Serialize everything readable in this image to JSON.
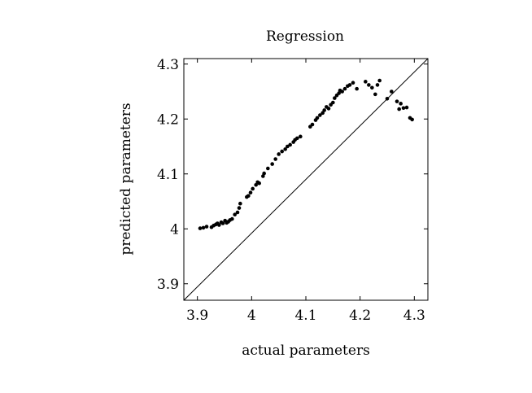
{
  "chart_data": {
    "type": "scatter",
    "title": "Regression",
    "xlabel": "actual parameters",
    "ylabel": "predicted parameters",
    "xlim": [
      3.875,
      4.325
    ],
    "ylim": [
      3.87,
      4.31
    ],
    "xticks": [
      "3.9",
      "4",
      "4.1",
      "4.2",
      "4.3"
    ],
    "xtick_values": [
      3.9,
      4.0,
      4.1,
      4.2,
      4.3
    ],
    "yticks": [
      "3.9",
      "4",
      "4.1",
      "4.2",
      "4.3"
    ],
    "ytick_values": [
      3.9,
      4.0,
      4.1,
      4.2,
      4.3
    ],
    "grid": false,
    "reference_line": {
      "from": [
        3.875,
        3.87
      ],
      "to": [
        4.325,
        4.31
      ]
    },
    "marker_color": "#000000",
    "points": [
      [
        3.905,
        4.001
      ],
      [
        3.911,
        4.002
      ],
      [
        3.917,
        4.004
      ],
      [
        3.926,
        4.003
      ],
      [
        3.93,
        4.006
      ],
      [
        3.934,
        4.008
      ],
      [
        3.937,
        4.01
      ],
      [
        3.94,
        4.007
      ],
      [
        3.944,
        4.012
      ],
      [
        3.947,
        4.01
      ],
      [
        3.951,
        4.015
      ],
      [
        3.954,
        4.011
      ],
      [
        3.957,
        4.013
      ],
      [
        3.96,
        4.016
      ],
      [
        3.964,
        4.018
      ],
      [
        3.969,
        4.026
      ],
      [
        3.974,
        4.03
      ],
      [
        3.977,
        4.038
      ],
      [
        3.979,
        4.046
      ],
      [
        3.991,
        4.058
      ],
      [
        3.994,
        4.06
      ],
      [
        3.998,
        4.066
      ],
      [
        4.002,
        4.073
      ],
      [
        4.008,
        4.08
      ],
      [
        4.011,
        4.085
      ],
      [
        4.014,
        4.083
      ],
      [
        4.021,
        4.096
      ],
      [
        4.023,
        4.101
      ],
      [
        4.03,
        4.11
      ],
      [
        4.038,
        4.118
      ],
      [
        4.044,
        4.127
      ],
      [
        4.05,
        4.136
      ],
      [
        4.056,
        4.141
      ],
      [
        4.062,
        4.145
      ],
      [
        4.066,
        4.15
      ],
      [
        4.071,
        4.153
      ],
      [
        4.077,
        4.158
      ],
      [
        4.08,
        4.162
      ],
      [
        4.084,
        4.165
      ],
      [
        4.09,
        4.168
      ],
      [
        4.108,
        4.186
      ],
      [
        4.112,
        4.19
      ],
      [
        4.118,
        4.198
      ],
      [
        4.121,
        4.202
      ],
      [
        4.126,
        4.207
      ],
      [
        4.131,
        4.211
      ],
      [
        4.134,
        4.216
      ],
      [
        4.138,
        4.222
      ],
      [
        4.142,
        4.219
      ],
      [
        4.146,
        4.226
      ],
      [
        4.15,
        4.23
      ],
      [
        4.153,
        4.238
      ],
      [
        4.157,
        4.243
      ],
      [
        4.161,
        4.247
      ],
      [
        4.163,
        4.252
      ],
      [
        4.167,
        4.25
      ],
      [
        4.172,
        4.255
      ],
      [
        4.177,
        4.26
      ],
      [
        4.181,
        4.262
      ],
      [
        4.187,
        4.266
      ],
      [
        4.194,
        4.255
      ],
      [
        4.21,
        4.268
      ],
      [
        4.216,
        4.262
      ],
      [
        4.222,
        4.257
      ],
      [
        4.228,
        4.245
      ],
      [
        4.232,
        4.262
      ],
      [
        4.236,
        4.27
      ],
      [
        4.25,
        4.237
      ],
      [
        4.258,
        4.25
      ],
      [
        4.268,
        4.232
      ],
      [
        4.272,
        4.218
      ],
      [
        4.275,
        4.228
      ],
      [
        4.28,
        4.22
      ],
      [
        4.286,
        4.221
      ],
      [
        4.292,
        4.202
      ],
      [
        4.296,
        4.199
      ]
    ]
  }
}
